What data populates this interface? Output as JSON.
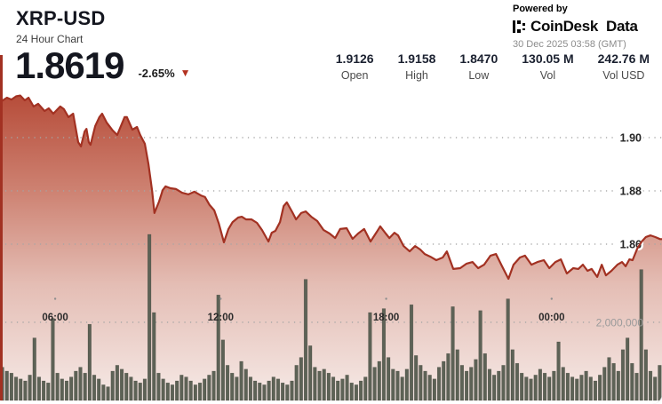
{
  "header": {
    "symbol": "XRP-USD",
    "subtitle": "24 Hour Chart",
    "price": "1.8619",
    "change_pct": "-2.65%",
    "change_direction": "down",
    "change_icon": "▼",
    "stats": [
      {
        "value": "1.9126",
        "label": "Open"
      },
      {
        "value": "1.9158",
        "label": "High"
      },
      {
        "value": "1.8470",
        "label": "Low"
      },
      {
        "value": "130.05 M",
        "label": "Vol"
      },
      {
        "value": "242.76 M",
        "label": "Vol USD"
      }
    ],
    "powered_by": "Powered by",
    "provider_name": "CoinDesk",
    "provider_suffix": "Data",
    "timestamp": "30 Dec 2025 03:58 (GMT)"
  },
  "colors": {
    "accent_red": "#a23122",
    "area_top": "#b54936",
    "area_mid1": "#cd8171",
    "area_mid2": "#e4bdb4",
    "area_bottom": "#f6ebe8",
    "volume_bar": "#5d6256",
    "volume_bar_edge": "rgba(40,44,36,0.4)",
    "grid_dot": "#a5a5a5",
    "axis_label_dark": "#262626",
    "axis_label_gray": "#9b9b9b",
    "tick_dot": "#8f8f8f"
  },
  "chart_data": {
    "type": "line",
    "title": "XRP-USD 24 Hour Chart",
    "legend": "none",
    "grid": "dotted-horizontal",
    "x_axis": {
      "unit": "time-of-day",
      "range_minutes_from_start": [
        0,
        1440
      ],
      "ticks": [
        {
          "minute": 120,
          "label": "06:00"
        },
        {
          "minute": 480,
          "label": "12:00"
        },
        {
          "minute": 840,
          "label": "18:00"
        },
        {
          "minute": 1200,
          "label": "00:00"
        }
      ]
    },
    "y_axis": {
      "side": "right",
      "unit": "USD",
      "range": [
        1.842,
        1.922
      ],
      "ticks": [
        {
          "value": 1.9,
          "label": "1.90"
        },
        {
          "value": 1.88,
          "label": "1.88"
        },
        {
          "value": 1.86,
          "label": "1.86"
        }
      ]
    },
    "ohlc": {
      "open": 1.9126,
      "high": 1.9158,
      "low": 1.847,
      "close": 1.8619,
      "vol": "130.05 M",
      "vol_usd": "242.76 M"
    },
    "price_series": {
      "name": "XRP-USD price",
      "points": [
        [
          0,
          1.9133
        ],
        [
          15,
          1.915
        ],
        [
          25,
          1.9143
        ],
        [
          35,
          1.9155
        ],
        [
          44,
          1.9158
        ],
        [
          54,
          1.914
        ],
        [
          62,
          1.915
        ],
        [
          73,
          1.9117
        ],
        [
          83,
          1.9127
        ],
        [
          97,
          1.91
        ],
        [
          106,
          1.911
        ],
        [
          116,
          1.909
        ],
        [
          131,
          1.9117
        ],
        [
          139,
          1.9107
        ],
        [
          149,
          1.9077
        ],
        [
          159,
          1.909
        ],
        [
          170,
          1.8983
        ],
        [
          176,
          1.8967
        ],
        [
          184,
          1.9023
        ],
        [
          188,
          1.9033
        ],
        [
          193,
          1.8983
        ],
        [
          197,
          1.8973
        ],
        [
          207,
          1.9043
        ],
        [
          216,
          1.9077
        ],
        [
          222,
          1.909
        ],
        [
          232,
          1.9057
        ],
        [
          245,
          1.9027
        ],
        [
          255,
          1.901
        ],
        [
          271,
          1.9077
        ],
        [
          276,
          1.9077
        ],
        [
          288,
          1.903
        ],
        [
          298,
          1.904
        ],
        [
          305,
          1.901
        ],
        [
          311,
          1.899
        ],
        [
          315,
          1.8977
        ],
        [
          323,
          1.89
        ],
        [
          331,
          1.88
        ],
        [
          336,
          1.8717
        ],
        [
          346,
          1.876
        ],
        [
          354,
          1.8803
        ],
        [
          360,
          1.8817
        ],
        [
          371,
          1.881
        ],
        [
          383,
          1.8807
        ],
        [
          396,
          1.8793
        ],
        [
          410,
          1.8787
        ],
        [
          423,
          1.8797
        ],
        [
          437,
          1.8783
        ],
        [
          446,
          1.8777
        ],
        [
          456,
          1.8747
        ],
        [
          466,
          1.8727
        ],
        [
          476,
          1.8677
        ],
        [
          487,
          1.8607
        ],
        [
          497,
          1.8657
        ],
        [
          506,
          1.8683
        ],
        [
          518,
          1.87
        ],
        [
          526,
          1.8703
        ],
        [
          535,
          1.8693
        ],
        [
          547,
          1.8693
        ],
        [
          559,
          1.868
        ],
        [
          570,
          1.8653
        ],
        [
          584,
          1.861
        ],
        [
          591,
          1.8643
        ],
        [
          599,
          1.865
        ],
        [
          609,
          1.8683
        ],
        [
          617,
          1.8743
        ],
        [
          624,
          1.8757
        ],
        [
          636,
          1.872
        ],
        [
          644,
          1.8693
        ],
        [
          655,
          1.8717
        ],
        [
          665,
          1.8723
        ],
        [
          677,
          1.8703
        ],
        [
          690,
          1.8687
        ],
        [
          704,
          1.8653
        ],
        [
          717,
          1.864
        ],
        [
          729,
          1.8623
        ],
        [
          740,
          1.8657
        ],
        [
          754,
          1.866
        ],
        [
          767,
          1.862
        ],
        [
          779,
          1.864
        ],
        [
          792,
          1.8657
        ],
        [
          806,
          1.861
        ],
        [
          820,
          1.8647
        ],
        [
          827,
          1.8667
        ],
        [
          839,
          1.864
        ],
        [
          847,
          1.8623
        ],
        [
          858,
          1.8643
        ],
        [
          866,
          1.8633
        ],
        [
          878,
          1.8593
        ],
        [
          891,
          1.8573
        ],
        [
          903,
          1.8593
        ],
        [
          914,
          1.858
        ],
        [
          924,
          1.8563
        ],
        [
          936,
          1.8553
        ],
        [
          949,
          1.854
        ],
        [
          963,
          1.855
        ],
        [
          972,
          1.8573
        ],
        [
          986,
          1.8507
        ],
        [
          1001,
          1.851
        ],
        [
          1015,
          1.8527
        ],
        [
          1028,
          1.8533
        ],
        [
          1040,
          1.851
        ],
        [
          1053,
          1.8523
        ],
        [
          1067,
          1.8557
        ],
        [
          1079,
          1.8563
        ],
        [
          1092,
          1.8517
        ],
        [
          1106,
          1.847
        ],
        [
          1117,
          1.8523
        ],
        [
          1131,
          1.855
        ],
        [
          1142,
          1.8557
        ],
        [
          1156,
          1.8523
        ],
        [
          1169,
          1.8533
        ],
        [
          1183,
          1.854
        ],
        [
          1195,
          1.851
        ],
        [
          1208,
          1.8533
        ],
        [
          1220,
          1.8543
        ],
        [
          1233,
          1.849
        ],
        [
          1247,
          1.851
        ],
        [
          1258,
          1.8507
        ],
        [
          1268,
          1.8523
        ],
        [
          1278,
          1.85
        ],
        [
          1287,
          1.8507
        ],
        [
          1299,
          1.8477
        ],
        [
          1309,
          1.8523
        ],
        [
          1318,
          1.8483
        ],
        [
          1330,
          1.85
        ],
        [
          1343,
          1.8523
        ],
        [
          1353,
          1.8533
        ],
        [
          1361,
          1.8517
        ],
        [
          1369,
          1.8543
        ],
        [
          1376,
          1.854
        ],
        [
          1386,
          1.8583
        ],
        [
          1396,
          1.861
        ],
        [
          1405,
          1.8627
        ],
        [
          1415,
          1.8633
        ],
        [
          1425,
          1.8627
        ],
        [
          1436,
          1.8619
        ]
      ]
    },
    "volume_series": {
      "name": "volume",
      "type": "bar",
      "tick_value": 2000000,
      "tick_label": "2,000,000",
      "values": [
        850000,
        750000,
        700000,
        600000,
        550000,
        500000,
        650000,
        1600000,
        600000,
        500000,
        450000,
        2100000,
        700000,
        550000,
        500000,
        600000,
        750000,
        850000,
        700000,
        1950000,
        650000,
        550000,
        400000,
        350000,
        750000,
        900000,
        800000,
        700000,
        600000,
        500000,
        450000,
        550000,
        4250000,
        2250000,
        700000,
        550000,
        450000,
        400000,
        500000,
        650000,
        600000,
        500000,
        400000,
        450000,
        550000,
        650000,
        750000,
        2700000,
        1550000,
        900000,
        700000,
        600000,
        1000000,
        800000,
        600000,
        500000,
        450000,
        400000,
        500000,
        600000,
        550000,
        450000,
        400000,
        500000,
        900000,
        1100000,
        3100000,
        1400000,
        850000,
        750000,
        800000,
        700000,
        600000,
        500000,
        550000,
        650000,
        450000,
        400000,
        500000,
        600000,
        2250000,
        850000,
        1000000,
        2350000,
        1100000,
        800000,
        750000,
        600000,
        800000,
        2450000,
        1150000,
        900000,
        750000,
        650000,
        550000,
        850000,
        1000000,
        1200000,
        2400000,
        1300000,
        900000,
        750000,
        850000,
        1050000,
        2300000,
        1200000,
        800000,
        650000,
        750000,
        900000,
        2600000,
        1300000,
        950000,
        700000,
        600000,
        550000,
        650000,
        800000,
        700000,
        600000,
        750000,
        1500000,
        850000,
        700000,
        600000,
        550000,
        650000,
        750000,
        600000,
        500000,
        650000,
        850000,
        1100000,
        950000,
        750000,
        1300000,
        1600000,
        950000,
        700000,
        3350000,
        1300000,
        750000,
        600000,
        900000
      ]
    }
  }
}
